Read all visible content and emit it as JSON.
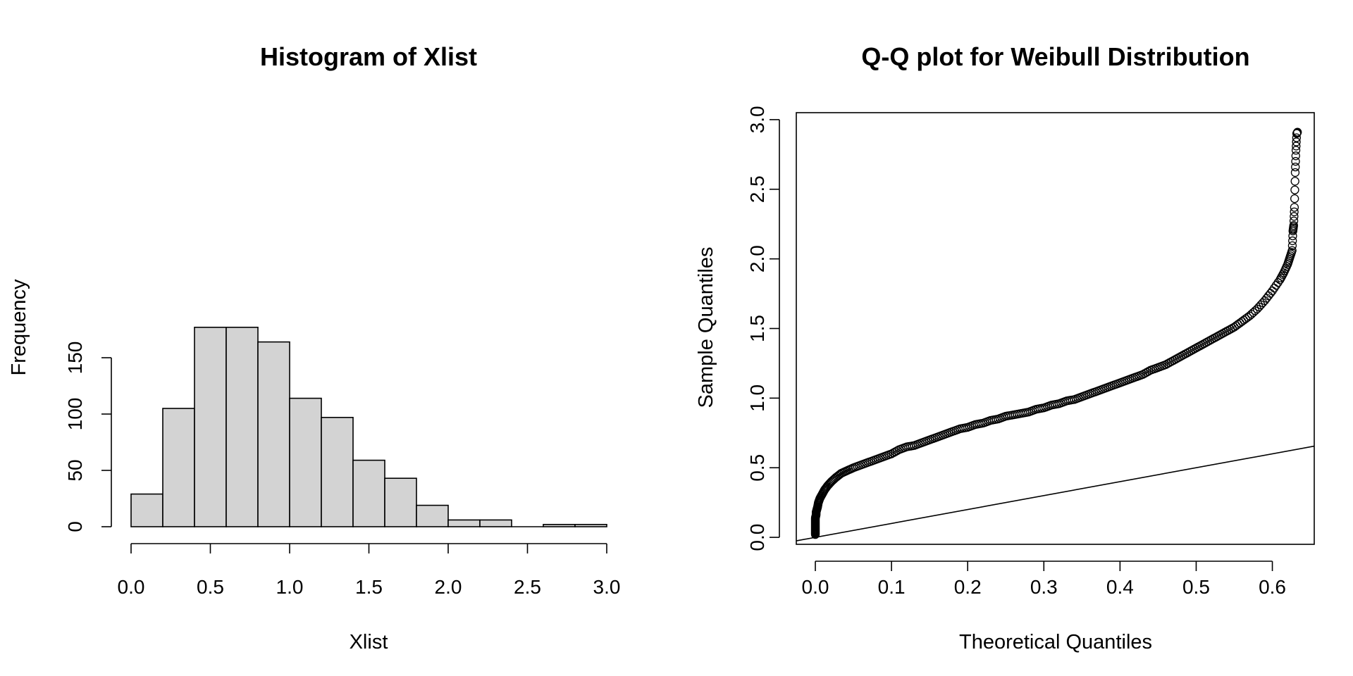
{
  "chart_data": [
    {
      "type": "bar",
      "title": "Histogram of Xlist",
      "xlabel": "Xlist",
      "ylabel": "Frequency",
      "bin_edges": [
        0.0,
        0.2,
        0.4,
        0.6,
        0.8,
        1.0,
        1.2,
        1.4,
        1.6,
        1.8,
        2.0,
        2.2,
        2.4,
        2.6,
        2.8,
        3.0
      ],
      "values": [
        29,
        105,
        177,
        177,
        164,
        114,
        97,
        59,
        43,
        19,
        6,
        6,
        0,
        2,
        2
      ],
      "xlim": [
        0,
        3
      ],
      "ylim": [
        0,
        177
      ],
      "xticks": [
        0.0,
        0.5,
        1.0,
        1.5,
        2.0,
        2.5,
        3.0
      ],
      "xtick_labels": [
        "0.0",
        "0.5",
        "1.0",
        "1.5",
        "2.0",
        "2.5",
        "3.0"
      ],
      "yticks": [
        0,
        50,
        100,
        150
      ],
      "ytick_labels": [
        "0",
        "50",
        "100",
        "150"
      ],
      "grid": false,
      "bar_color": "#d3d3d3"
    },
    {
      "type": "scatter",
      "title": "Q-Q plot for Weibull Distribution",
      "xlabel": "Theoretical Quantiles",
      "ylabel": "Sample Quantiles",
      "xlim": [
        -0.025,
        0.655
      ],
      "ylim": [
        -0.05,
        3.05
      ],
      "xticks": [
        0.0,
        0.1,
        0.2,
        0.3,
        0.4,
        0.5,
        0.6
      ],
      "xtick_labels": [
        "0.0",
        "0.1",
        "0.2",
        "0.3",
        "0.4",
        "0.5",
        "0.6"
      ],
      "yticks": [
        0.0,
        0.5,
        1.0,
        1.5,
        2.0,
        2.5,
        3.0
      ],
      "ytick_labels": [
        "0.0",
        "0.5",
        "1.0",
        "1.5",
        "2.0",
        "2.5",
        "3.0"
      ],
      "grid": false,
      "reference_line": {
        "intercept": 0,
        "slope": 1
      },
      "points": [
        [
          0.0,
          0.02
        ],
        [
          0.0,
          0.04
        ],
        [
          0.0,
          0.06
        ],
        [
          0.0,
          0.08
        ],
        [
          0.0,
          0.1
        ],
        [
          0.0,
          0.12
        ],
        [
          0.0,
          0.14
        ],
        [
          0.001,
          0.16
        ],
        [
          0.001,
          0.18
        ],
        [
          0.002,
          0.2
        ],
        [
          0.003,
          0.22
        ],
        [
          0.004,
          0.25
        ],
        [
          0.006,
          0.28
        ],
        [
          0.009,
          0.31
        ],
        [
          0.012,
          0.34
        ],
        [
          0.016,
          0.37
        ],
        [
          0.021,
          0.4
        ],
        [
          0.027,
          0.43
        ],
        [
          0.034,
          0.46
        ],
        [
          0.042,
          0.48
        ],
        [
          0.05,
          0.5
        ],
        [
          0.06,
          0.52
        ],
        [
          0.07,
          0.54
        ],
        [
          0.08,
          0.56
        ],
        [
          0.09,
          0.58
        ],
        [
          0.1,
          0.6
        ],
        [
          0.11,
          0.63
        ],
        [
          0.12,
          0.65
        ],
        [
          0.13,
          0.66
        ],
        [
          0.14,
          0.68
        ],
        [
          0.15,
          0.7
        ],
        [
          0.16,
          0.72
        ],
        [
          0.17,
          0.74
        ],
        [
          0.18,
          0.76
        ],
        [
          0.19,
          0.78
        ],
        [
          0.2,
          0.79
        ],
        [
          0.21,
          0.81
        ],
        [
          0.22,
          0.82
        ],
        [
          0.23,
          0.84
        ],
        [
          0.24,
          0.85
        ],
        [
          0.25,
          0.87
        ],
        [
          0.26,
          0.88
        ],
        [
          0.27,
          0.89
        ],
        [
          0.28,
          0.9
        ],
        [
          0.29,
          0.92
        ],
        [
          0.3,
          0.93
        ],
        [
          0.31,
          0.95
        ],
        [
          0.32,
          0.96
        ],
        [
          0.33,
          0.98
        ],
        [
          0.34,
          0.99
        ],
        [
          0.35,
          1.01
        ],
        [
          0.36,
          1.03
        ],
        [
          0.37,
          1.05
        ],
        [
          0.38,
          1.07
        ],
        [
          0.39,
          1.09
        ],
        [
          0.4,
          1.11
        ],
        [
          0.41,
          1.13
        ],
        [
          0.42,
          1.15
        ],
        [
          0.43,
          1.17
        ],
        [
          0.44,
          1.2
        ],
        [
          0.45,
          1.22
        ],
        [
          0.46,
          1.24
        ],
        [
          0.47,
          1.27
        ],
        [
          0.48,
          1.3
        ],
        [
          0.49,
          1.33
        ],
        [
          0.5,
          1.36
        ],
        [
          0.51,
          1.39
        ],
        [
          0.52,
          1.42
        ],
        [
          0.53,
          1.45
        ],
        [
          0.54,
          1.48
        ],
        [
          0.55,
          1.51
        ],
        [
          0.56,
          1.55
        ],
        [
          0.57,
          1.59
        ],
        [
          0.58,
          1.64
        ],
        [
          0.59,
          1.7
        ],
        [
          0.6,
          1.77
        ],
        [
          0.61,
          1.85
        ],
        [
          0.615,
          1.9
        ],
        [
          0.62,
          1.96
        ],
        [
          0.623,
          2.01
        ],
        [
          0.626,
          2.06
        ],
        [
          0.627,
          2.2
        ],
        [
          0.628,
          2.24
        ],
        [
          0.629,
          2.37
        ],
        [
          0.63,
          2.62
        ],
        [
          0.631,
          2.78
        ],
        [
          0.632,
          2.9
        ],
        [
          0.633,
          2.91
        ]
      ]
    }
  ]
}
